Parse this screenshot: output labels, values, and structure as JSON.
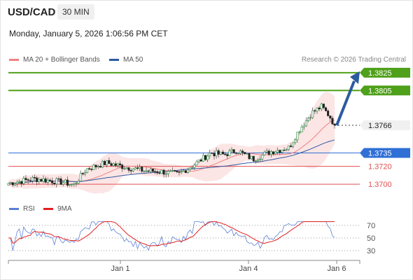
{
  "header": {
    "symbol": "USD/CAD",
    "timeframe": "30 MIN",
    "datetime": "Monday, January 5, 2026 1:06:56 PM CET"
  },
  "legend": {
    "main": [
      {
        "label": "MA 20 + Bollinger Bands",
        "color": "#f08080"
      },
      {
        "label": "MA 50",
        "color": "#2c5aa0"
      }
    ],
    "rsi": [
      {
        "label": "RSI",
        "color": "#5b7fd6"
      },
      {
        "label": "9MA",
        "color": "#e02020"
      }
    ]
  },
  "copyright": "Research © 2026 Trading Central",
  "chart_data": {
    "type": "candlestick",
    "price_range": [
      1.3693,
      1.3828
    ],
    "current_price": "1.3766",
    "levels": [
      {
        "value": "1.3825",
        "kind": "resistance",
        "color": "#4fa01a"
      },
      {
        "value": "1.3805",
        "kind": "resistance",
        "color": "#4fa01a"
      },
      {
        "value": "1.3766",
        "kind": "last",
        "color": "#333333"
      },
      {
        "value": "1.3735",
        "kind": "pivot",
        "color": "#2f6fd6"
      },
      {
        "value": "1.3720",
        "kind": "support",
        "color": "#e05050"
      },
      {
        "value": "1.3700",
        "kind": "support",
        "color": "#e05050"
      }
    ],
    "forecast_target": 1.3825,
    "x_ticks": [
      "Jan 1",
      "Jan 4",
      "Jan 6"
    ],
    "rsi_ticks": [
      70,
      50,
      30
    ]
  }
}
